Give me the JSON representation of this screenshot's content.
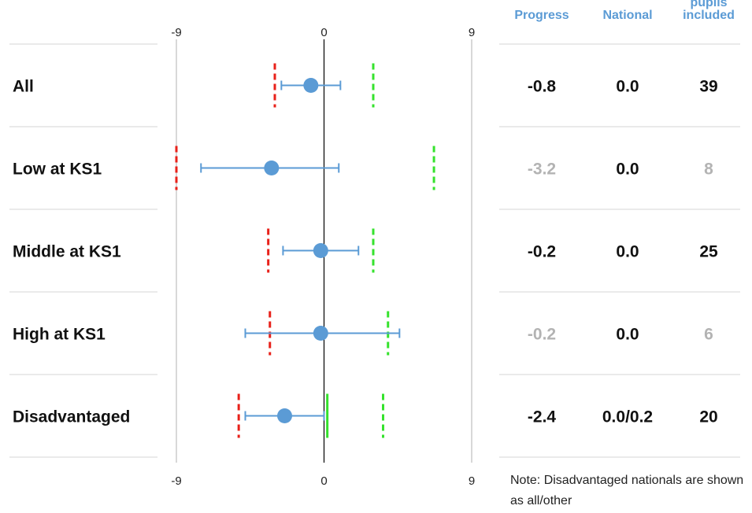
{
  "table": {
    "headers": [
      {
        "lines": [
          "Progress"
        ]
      },
      {
        "lines": [
          "National"
        ]
      },
      {
        "lines": [
          "pupils",
          "included"
        ]
      }
    ]
  },
  "note": "Note: Disadvantaged nationals are shown as all/other",
  "colors": {
    "point": "#5b9bd5",
    "errorbar": "#5b9bd5",
    "lower_marker": "#e8211a",
    "upper_marker": "#35e22d",
    "national_line": "#35e22d",
    "muted_text": "#b3b3b3",
    "strong_text": "#111111",
    "header": "#5b9bd5",
    "divider": "#e3e3e3"
  },
  "chart_data": {
    "type": "scatter",
    "title": "",
    "xlabel": "",
    "ylabel": "",
    "xlim": [
      -9,
      9
    ],
    "x_ticks": [
      "-9",
      "0",
      "9"
    ],
    "categories": [
      "All",
      "Low at KS1",
      "Middle at KS1",
      "High at KS1",
      "Disadvantaged"
    ],
    "progress": [
      -0.8,
      -3.2,
      -0.2,
      -0.2,
      -2.4
    ],
    "ci_lower": [
      -2.6,
      -7.5,
      -2.5,
      -4.8,
      -4.8
    ],
    "ci_upper": [
      1.0,
      0.9,
      2.1,
      4.6,
      0.0
    ],
    "lower_marker": [
      -3.0,
      -9.0,
      -3.4,
      -3.3,
      -5.2
    ],
    "upper_marker": [
      3.0,
      6.7,
      3.0,
      3.9,
      3.6
    ],
    "national_line": [
      null,
      null,
      null,
      null,
      0.2
    ],
    "table_rows": [
      {
        "progress": "-0.8",
        "national": "0.0",
        "pupils": "39",
        "muted": false
      },
      {
        "progress": "-3.2",
        "national": "0.0",
        "pupils": "8",
        "muted": true
      },
      {
        "progress": "-0.2",
        "national": "0.0",
        "pupils": "25",
        "muted": false
      },
      {
        "progress": "-0.2",
        "national": "0.0",
        "pupils": "6",
        "muted": true
      },
      {
        "progress": "-2.4",
        "national": "0.0/0.2",
        "pupils": "20",
        "muted": false
      }
    ]
  }
}
